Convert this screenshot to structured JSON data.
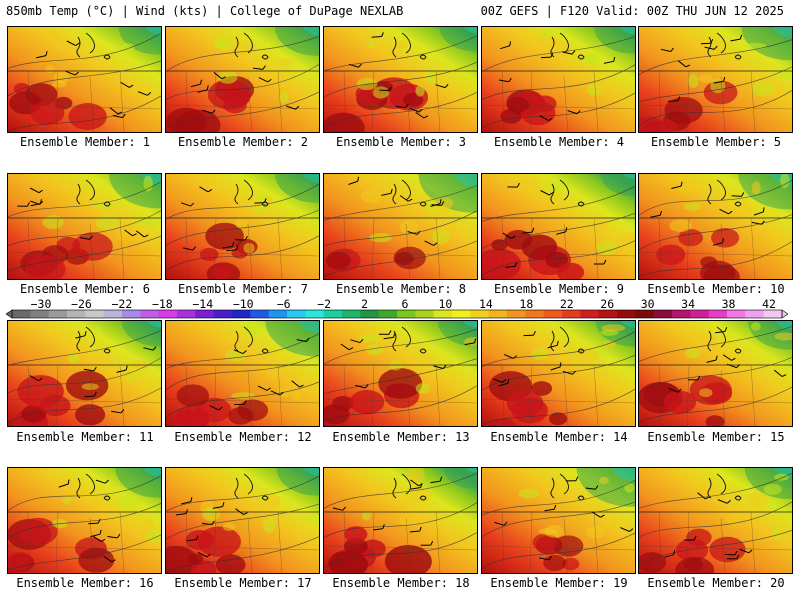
{
  "header": {
    "left_title": "850mb Temp (°C) | Wind (kts) | College of DuPage NEXLAB",
    "right_title": "00Z GEFS | F120 Valid: 00Z THU JUN 12 2025"
  },
  "colorbar": {
    "labels": [
      "-30",
      "-26",
      "-22",
      "-18",
      "-14",
      "-10",
      "-6",
      "-2",
      "2",
      "6",
      "10",
      "14",
      "18",
      "22",
      "26",
      "30",
      "34",
      "38",
      "42"
    ],
    "colors": [
      "#6a6a6a",
      "#808080",
      "#9a9a9a",
      "#b4b4b4",
      "#c8c8c8",
      "#b9b4d8",
      "#a68be6",
      "#c25ce6",
      "#d63ce6",
      "#a830e0",
      "#7a1ed6",
      "#4a1ec8",
      "#1e28c8",
      "#1e5ae6",
      "#1e96f0",
      "#28c8f0",
      "#28e6dc",
      "#1ecfa0",
      "#1eb46e",
      "#1e9646",
      "#3caa28",
      "#78c81e",
      "#aad21e",
      "#dce61e",
      "#f0f01e",
      "#f0d21e",
      "#f0b41e",
      "#f0961e",
      "#f0781e",
      "#f05a1e",
      "#e63c1e",
      "#d21e1e",
      "#b41414",
      "#960a0a",
      "#780a0a",
      "#8c0a3c",
      "#b4146e",
      "#d21e96",
      "#e63cc8",
      "#f078e6",
      "#f0a0f0",
      "#f0c8f0"
    ]
  },
  "members": [
    {
      "label": "Ensemble Member: 1",
      "warmth": 0.82
    },
    {
      "label": "Ensemble Member: 2",
      "warmth": 0.8
    },
    {
      "label": "Ensemble Member: 3",
      "warmth": 0.88
    },
    {
      "label": "Ensemble Member: 4",
      "warmth": 0.84
    },
    {
      "label": "Ensemble Member: 5",
      "warmth": 0.72
    },
    {
      "label": "Ensemble Member: 6",
      "warmth": 0.7
    },
    {
      "label": "Ensemble Member: 7",
      "warmth": 0.8
    },
    {
      "label": "Ensemble Member: 8",
      "warmth": 0.62
    },
    {
      "label": "Ensemble Member: 9",
      "warmth": 0.92
    },
    {
      "label": "Ensemble Member: 10",
      "warmth": 0.68
    },
    {
      "label": "Ensemble Member: 11",
      "warmth": 0.86
    },
    {
      "label": "Ensemble Member: 12",
      "warmth": 0.68
    },
    {
      "label": "Ensemble Member: 13",
      "warmth": 0.86
    },
    {
      "label": "Ensemble Member: 14",
      "warmth": 0.86
    },
    {
      "label": "Ensemble Member: 15",
      "warmth": 0.8
    },
    {
      "label": "Ensemble Member: 16",
      "warmth": 0.78
    },
    {
      "label": "Ensemble Member: 17",
      "warmth": 0.82
    },
    {
      "label": "Ensemble Member: 18",
      "warmth": 0.94
    },
    {
      "label": "Ensemble Member: 19",
      "warmth": 0.62
    },
    {
      "label": "Ensemble Member: 20",
      "warmth": 0.76
    }
  ]
}
